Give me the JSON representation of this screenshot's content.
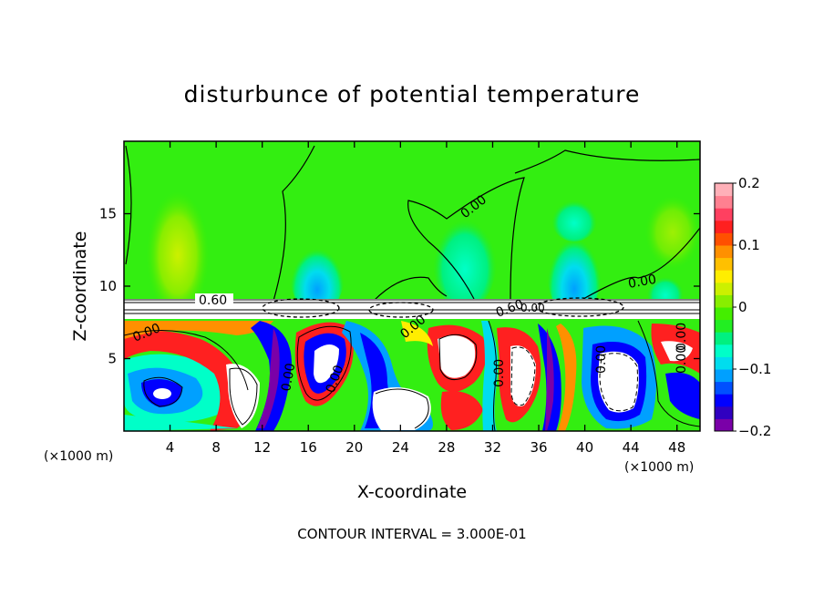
{
  "chart_data": {
    "type": "heatmap",
    "title": "disturbunce of potential temperature",
    "xlabel": "X-coordinate",
    "ylabel": "Z-coordinate",
    "xlim": [
      0,
      50
    ],
    "ylim": [
      0,
      20
    ],
    "x_unit_left": "(×1000 m)",
    "x_unit_right": "(×1000 m)",
    "x_ticks": [
      4,
      8,
      12,
      16,
      20,
      24,
      28,
      32,
      36,
      40,
      44,
      48
    ],
    "y_ticks": [
      5,
      10,
      15
    ],
    "colorbar": {
      "range": [
        -0.2,
        0.2
      ],
      "tick_labels": [
        "0.2",
        "0.1",
        "0",
        "−0.1",
        "−0.2"
      ],
      "tick_values": [
        0.2,
        0.1,
        0,
        -0.1,
        -0.2
      ],
      "colors": [
        "#7a00a8",
        "#3000c0",
        "#0000ff",
        "#0050ff",
        "#00a0ff",
        "#00ddee",
        "#00ffc8",
        "#00f080",
        "#22ee22",
        "#44ee00",
        "#88ee00",
        "#ccf000",
        "#ffee00",
        "#ffc000",
        "#ff9000",
        "#ff5000",
        "#ff2020",
        "#ff4060",
        "#ff8090",
        "#ffb0b8"
      ]
    },
    "contour_labels": [
      "0.00",
      "0.00",
      "0.00",
      "0.60",
      "0.60",
      "0.00",
      "0.00",
      "0.00",
      "0.00",
      "0.00",
      "0.00",
      "0.00",
      "0.00"
    ],
    "footer": "CONTOUR INTERVAL = 3.000E-01"
  }
}
